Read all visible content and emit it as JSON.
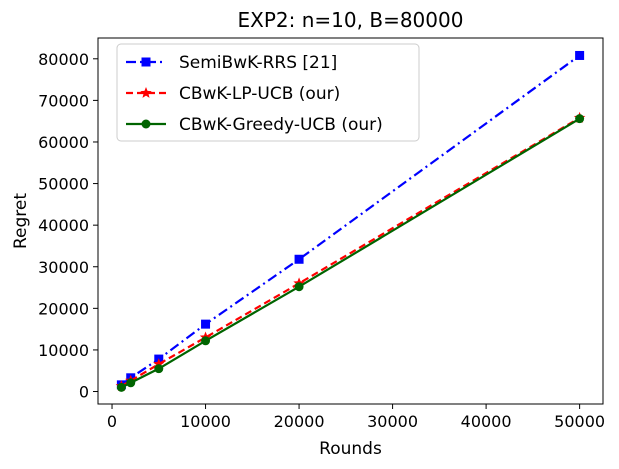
{
  "chart_data": {
    "type": "line",
    "title": "EXP2: n=10, B=80000",
    "xlabel": "Rounds",
    "ylabel": "Regret",
    "xlim": [
      -1500,
      52500
    ],
    "ylim": [
      -3000,
      85000
    ],
    "xticks": [
      0,
      10000,
      20000,
      30000,
      40000,
      50000
    ],
    "yticks": [
      0,
      10000,
      20000,
      30000,
      40000,
      50000,
      60000,
      70000,
      80000
    ],
    "x": [
      1000,
      2000,
      5000,
      10000,
      20000,
      50000
    ],
    "legend_position": "upper-left",
    "series": [
      {
        "name": "SemiBwK-RRS [21]",
        "color": "#0000ff",
        "line_style": "dashdot",
        "marker": "square",
        "values": [
          1600,
          3300,
          7800,
          16200,
          31800,
          80800
        ]
      },
      {
        "name": "CBwK-LP-UCB (our)",
        "color": "#ff0000",
        "line_style": "dashed",
        "marker": "star",
        "values": [
          1300,
          2600,
          6600,
          13000,
          26000,
          65800
        ]
      },
      {
        "name": "CBwK-Greedy-UCB (our)",
        "color": "#006400",
        "line_style": "solid",
        "marker": "circle",
        "values": [
          1000,
          2100,
          5500,
          12200,
          25200,
          65600
        ]
      }
    ]
  }
}
